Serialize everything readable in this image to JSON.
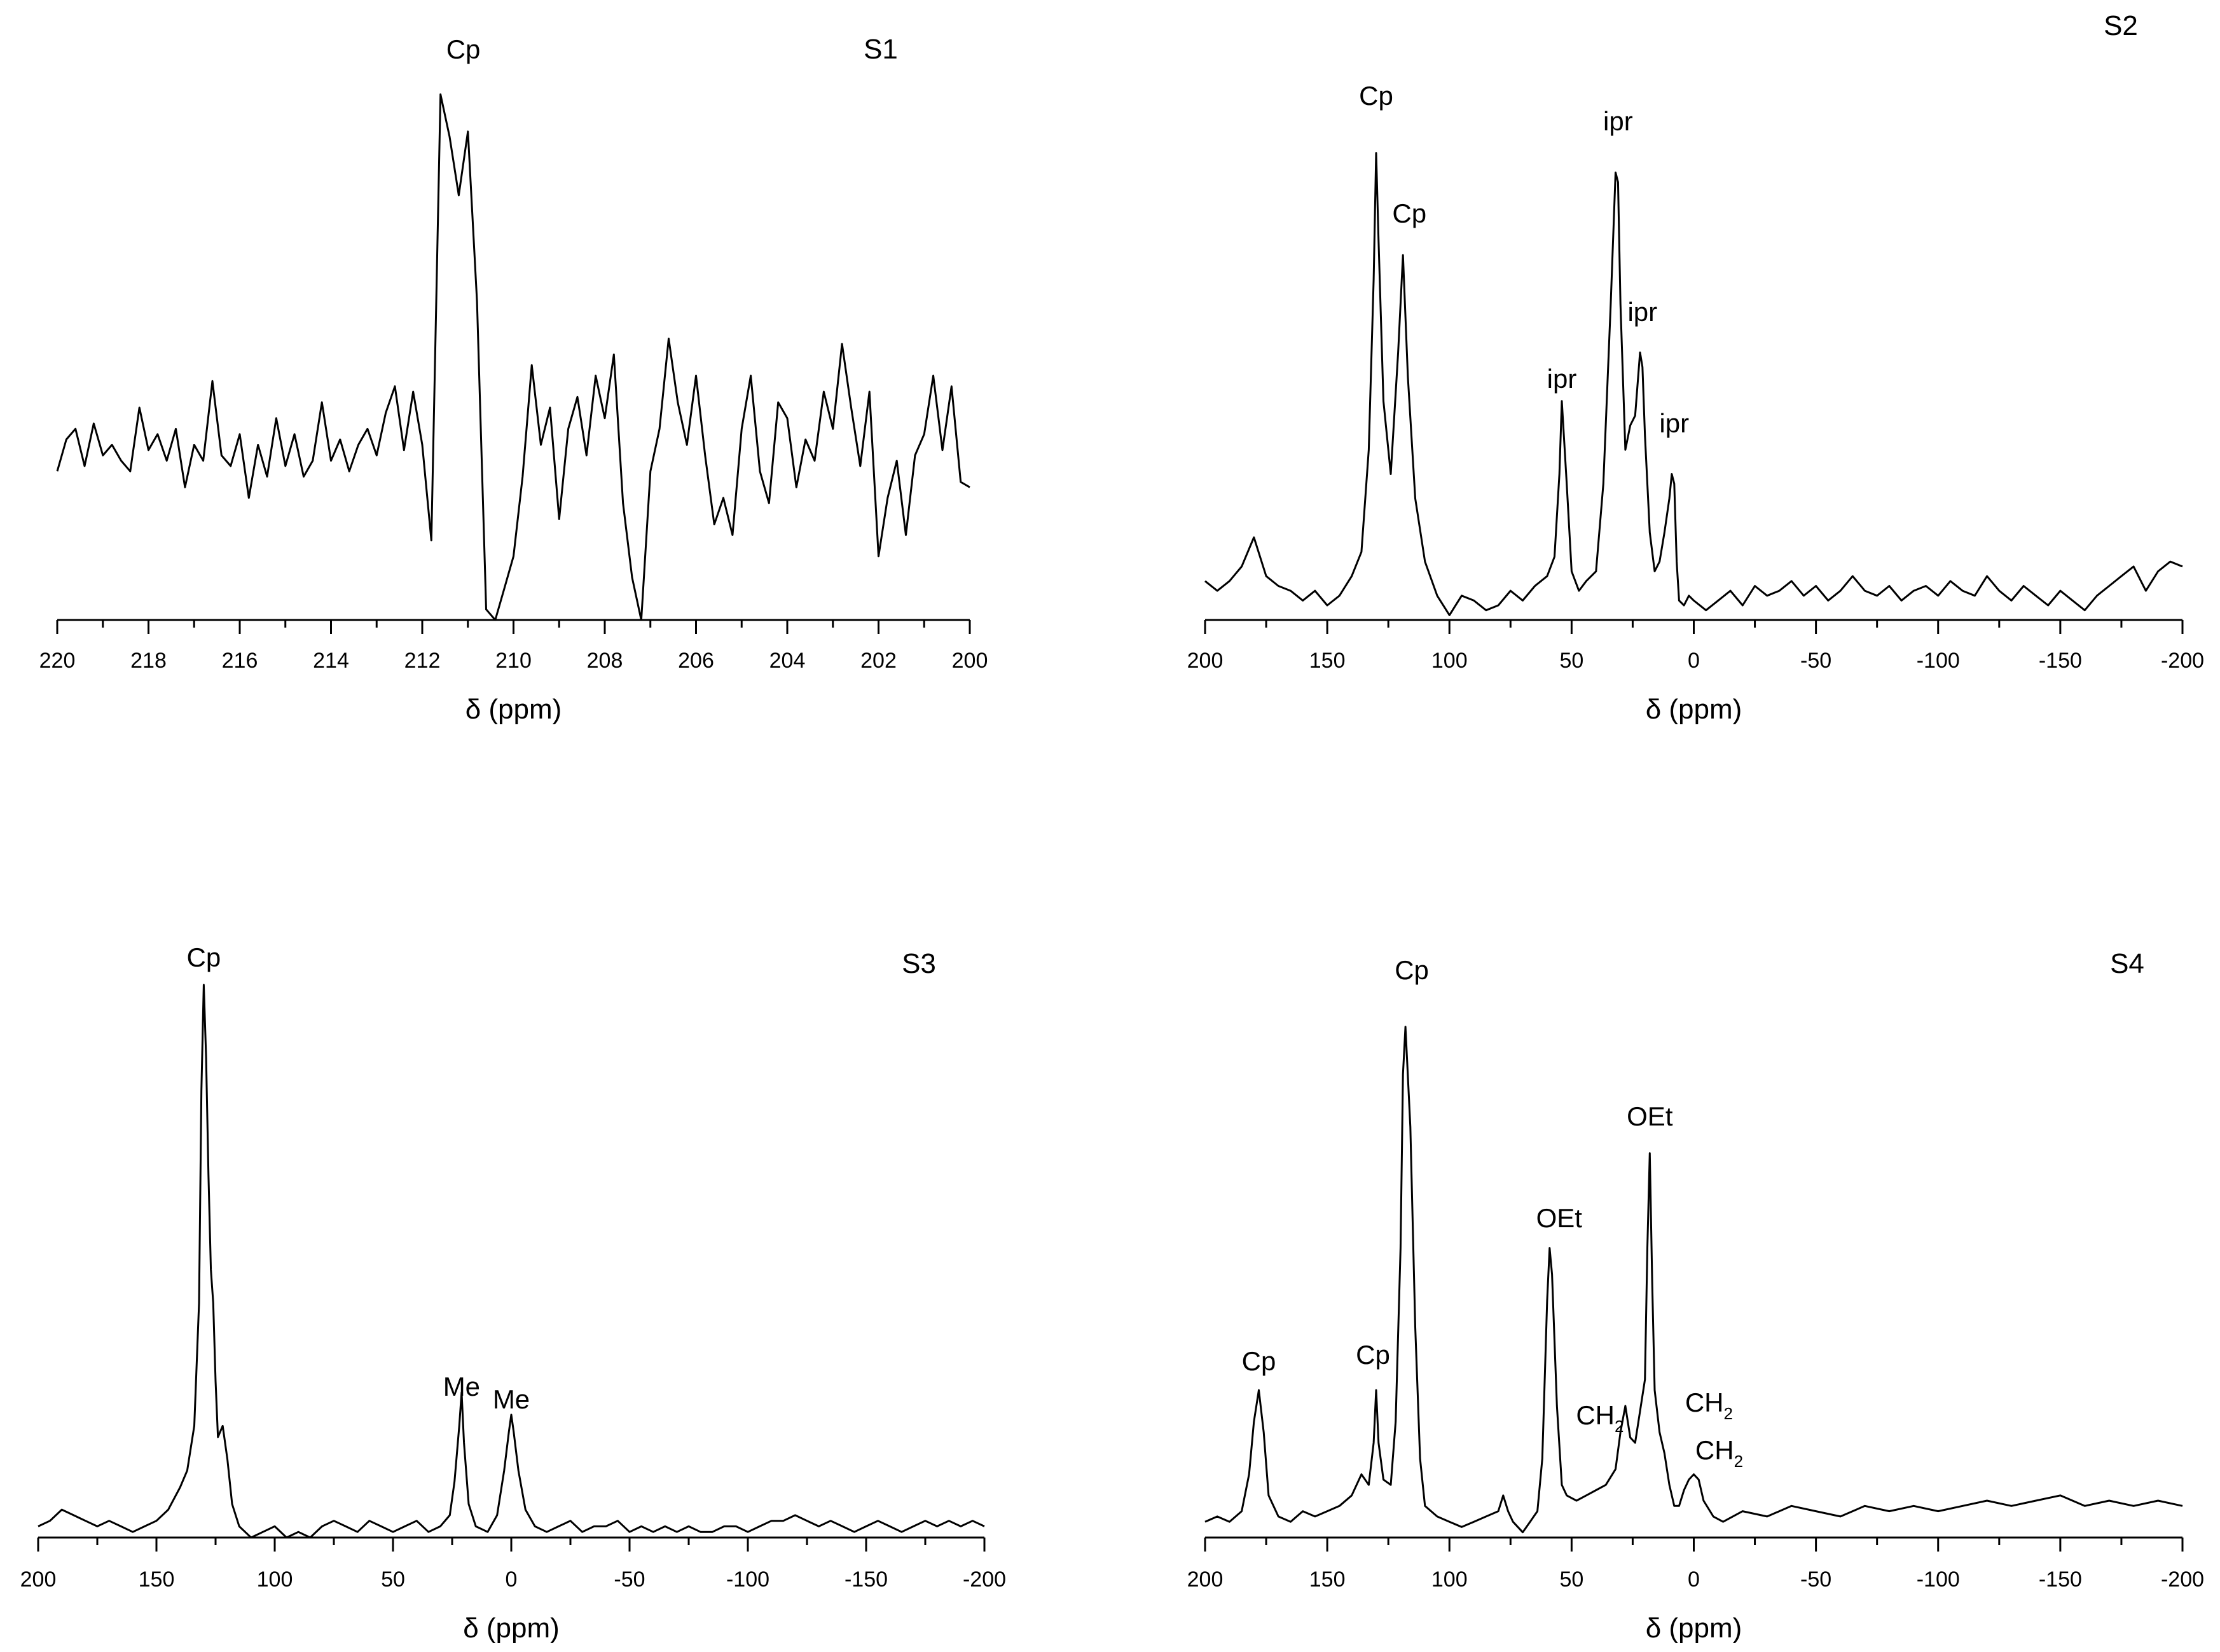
{
  "figure": {
    "panels": [
      "S1",
      "S2",
      "S3",
      "S4"
    ]
  },
  "chart_data": [
    {
      "type": "line",
      "panel_label": "S1",
      "xlabel": "δ (ppm)",
      "ylabel": "",
      "xlim": [
        220,
        200
      ],
      "x_reversed": true,
      "y_axis_shown": false,
      "grid": false,
      "xticks": [
        220,
        218,
        216,
        214,
        212,
        210,
        208,
        206,
        204,
        202,
        200
      ],
      "annotations": [
        {
          "text": "Cp",
          "x": 211.1
        }
      ],
      "series": [
        {
          "x": [
            220.0,
            219.8,
            219.6,
            219.4,
            219.2,
            219.0,
            218.8,
            218.6,
            218.4,
            218.2,
            218.0,
            217.8,
            217.6,
            217.4,
            217.2,
            217.0,
            216.8,
            216.6,
            216.4,
            216.2,
            216.0,
            215.8,
            215.6,
            215.4,
            215.2,
            215.0,
            214.8,
            214.6,
            214.4,
            214.2,
            214.0,
            213.8,
            213.6,
            213.4,
            213.2,
            213.0,
            212.8,
            212.6,
            212.4,
            212.2,
            212.0,
            211.8,
            211.6,
            211.4,
            211.2,
            211.0,
            210.8,
            210.6,
            210.4,
            210.2,
            210.0,
            209.8,
            209.6,
            209.4,
            209.2,
            209.0,
            208.8,
            208.6,
            208.4,
            208.2,
            208.0,
            207.8,
            207.6,
            207.4,
            207.2,
            207.0,
            206.8,
            206.6,
            206.4,
            206.2,
            206.0,
            205.8,
            205.6,
            205.4,
            205.2,
            205.0,
            204.8,
            204.6,
            204.4,
            204.2,
            204.0,
            203.8,
            203.6,
            203.4,
            203.2,
            203.0,
            202.8,
            202.6,
            202.4,
            202.2,
            202.0,
            201.8,
            201.6,
            201.4,
            201.2,
            201.0,
            200.8,
            200.6,
            200.4,
            200.2,
            200.0
          ],
          "values": [
            0.28,
            0.34,
            0.36,
            0.29,
            0.37,
            0.31,
            0.33,
            0.3,
            0.28,
            0.4,
            0.32,
            0.35,
            0.3,
            0.36,
            0.25,
            0.33,
            0.3,
            0.45,
            0.31,
            0.29,
            0.35,
            0.23,
            0.33,
            0.27,
            0.38,
            0.29,
            0.35,
            0.27,
            0.3,
            0.41,
            0.3,
            0.34,
            0.28,
            0.33,
            0.36,
            0.31,
            0.39,
            0.44,
            0.32,
            0.43,
            0.33,
            0.15,
            0.99,
            0.91,
            0.8,
            0.92,
            0.6,
            0.02,
            0.0,
            0.06,
            0.12,
            0.27,
            0.48,
            0.33,
            0.4,
            0.19,
            0.36,
            0.42,
            0.31,
            0.46,
            0.38,
            0.5,
            0.22,
            0.08,
            0.0,
            0.28,
            0.36,
            0.53,
            0.41,
            0.33,
            0.46,
            0.31,
            0.18,
            0.23,
            0.16,
            0.36,
            0.46,
            0.28,
            0.22,
            0.41,
            0.38,
            0.25,
            0.34,
            0.3,
            0.43,
            0.36,
            0.52,
            0.4,
            0.29,
            0.43,
            0.12,
            0.23,
            0.3,
            0.16,
            0.31,
            0.35,
            0.46,
            0.32,
            0.44,
            0.26,
            0.25
          ]
        }
      ]
    },
    {
      "type": "line",
      "panel_label": "S2",
      "xlabel": "δ (ppm)",
      "ylabel": "",
      "xlim": [
        200,
        -200
      ],
      "x_reversed": true,
      "y_axis_shown": false,
      "grid": false,
      "xticks": [
        200,
        150,
        100,
        50,
        0,
        -50,
        -100,
        -150,
        -200
      ],
      "annotations": [
        {
          "text": "Cp",
          "x": 130
        },
        {
          "text": "Cp",
          "x": 119
        },
        {
          "text": "ipr",
          "x": 54
        },
        {
          "text": "ipr",
          "x": 31
        },
        {
          "text": "ipr",
          "x": 21
        },
        {
          "text": "ipr",
          "x": 8
        }
      ],
      "series": [
        {
          "x": [
            200,
            195,
            190,
            185,
            180,
            175,
            170,
            165,
            160,
            155,
            150,
            145,
            140,
            136,
            133,
            131,
            130,
            129,
            127,
            124,
            121,
            119,
            117,
            114,
            110,
            105,
            100,
            95,
            90,
            85,
            80,
            75,
            70,
            65,
            60,
            57,
            55,
            54,
            52,
            50,
            47,
            44,
            40,
            37,
            34,
            32,
            31,
            30,
            28,
            26,
            24,
            22,
            21,
            20,
            18,
            16,
            14,
            12,
            10,
            9,
            8,
            7,
            6,
            4,
            2,
            0,
            -5,
            -10,
            -15,
            -20,
            -25,
            -30,
            -35,
            -40,
            -45,
            -50,
            -55,
            -60,
            -65,
            -70,
            -75,
            -80,
            -85,
            -90,
            -95,
            -100,
            -105,
            -110,
            -115,
            -120,
            -125,
            -130,
            -135,
            -140,
            -145,
            -150,
            -155,
            -160,
            -165,
            -170,
            -175,
            -180,
            -185,
            -190,
            -195,
            -200
          ],
          "values": [
            0.08,
            0.06,
            0.08,
            0.11,
            0.17,
            0.09,
            0.07,
            0.06,
            0.04,
            0.06,
            0.03,
            0.05,
            0.09,
            0.14,
            0.35,
            0.7,
            0.96,
            0.78,
            0.45,
            0.3,
            0.55,
            0.75,
            0.5,
            0.25,
            0.12,
            0.05,
            0.01,
            0.05,
            0.04,
            0.02,
            0.03,
            0.06,
            0.04,
            0.07,
            0.09,
            0.13,
            0.3,
            0.45,
            0.28,
            0.1,
            0.06,
            0.08,
            0.1,
            0.28,
            0.65,
            0.92,
            0.9,
            0.65,
            0.35,
            0.4,
            0.42,
            0.55,
            0.52,
            0.38,
            0.18,
            0.1,
            0.12,
            0.18,
            0.25,
            0.3,
            0.28,
            0.12,
            0.04,
            0.03,
            0.05,
            0.04,
            0.02,
            0.04,
            0.06,
            0.03,
            0.07,
            0.05,
            0.06,
            0.08,
            0.05,
            0.07,
            0.04,
            0.06,
            0.09,
            0.06,
            0.05,
            0.07,
            0.04,
            0.06,
            0.07,
            0.05,
            0.08,
            0.06,
            0.05,
            0.09,
            0.06,
            0.04,
            0.07,
            0.05,
            0.03,
            0.06,
            0.04,
            0.02,
            0.05,
            0.07,
            0.09,
            0.11,
            0.06,
            0.1,
            0.12,
            0.11
          ]
        }
      ]
    },
    {
      "type": "line",
      "panel_label": "S3",
      "xlabel": "δ (ppm)",
      "ylabel": "",
      "xlim": [
        200,
        -200
      ],
      "x_reversed": true,
      "y_axis_shown": false,
      "grid": false,
      "xticks": [
        200,
        150,
        100,
        50,
        0,
        -50,
        -100,
        -150,
        -200
      ],
      "annotations": [
        {
          "text": "Cp",
          "x": 130
        },
        {
          "text": "Me",
          "x": 21
        },
        {
          "text": "Me",
          "x": 0
        }
      ],
      "series": [
        {
          "x": [
            200,
            195,
            190,
            185,
            180,
            175,
            170,
            165,
            160,
            155,
            150,
            145,
            140,
            137,
            134,
            132,
            131,
            130,
            129,
            128,
            127,
            126,
            125,
            124,
            122,
            120,
            118,
            115,
            110,
            105,
            100,
            95,
            90,
            85,
            80,
            75,
            70,
            65,
            60,
            55,
            50,
            45,
            40,
            35,
            30,
            26,
            24,
            22,
            21,
            20,
            18,
            15,
            10,
            6,
            3,
            1,
            0,
            -1,
            -3,
            -6,
            -10,
            -15,
            -20,
            -25,
            -30,
            -35,
            -40,
            -45,
            -50,
            -55,
            -60,
            -65,
            -70,
            -75,
            -80,
            -85,
            -90,
            -95,
            -100,
            -105,
            -110,
            -115,
            -120,
            -125,
            -130,
            -135,
            -140,
            -145,
            -150,
            -155,
            -160,
            -165,
            -170,
            -175,
            -180,
            -185,
            -190,
            -195,
            -200
          ],
          "values": [
            0.02,
            0.03,
            0.05,
            0.04,
            0.03,
            0.02,
            0.03,
            0.02,
            0.01,
            0.02,
            0.03,
            0.05,
            0.09,
            0.12,
            0.2,
            0.42,
            0.8,
            0.99,
            0.86,
            0.65,
            0.48,
            0.42,
            0.28,
            0.18,
            0.2,
            0.14,
            0.06,
            0.02,
            0.0,
            0.01,
            0.02,
            0.0,
            0.01,
            0.0,
            0.02,
            0.03,
            0.02,
            0.01,
            0.03,
            0.02,
            0.01,
            0.02,
            0.03,
            0.01,
            0.02,
            0.04,
            0.1,
            0.2,
            0.26,
            0.17,
            0.06,
            0.02,
            0.01,
            0.04,
            0.12,
            0.19,
            0.22,
            0.19,
            0.12,
            0.05,
            0.02,
            0.01,
            0.02,
            0.03,
            0.01,
            0.02,
            0.02,
            0.03,
            0.01,
            0.02,
            0.01,
            0.02,
            0.01,
            0.02,
            0.01,
            0.01,
            0.02,
            0.02,
            0.01,
            0.02,
            0.03,
            0.03,
            0.04,
            0.03,
            0.02,
            0.03,
            0.02,
            0.01,
            0.02,
            0.03,
            0.02,
            0.01,
            0.02,
            0.03,
            0.02,
            0.03,
            0.02,
            0.03,
            0.02
          ]
        }
      ]
    },
    {
      "type": "line",
      "panel_label": "S4",
      "xlabel": "δ (ppm)",
      "ylabel": "",
      "xlim": [
        200,
        -200
      ],
      "x_reversed": true,
      "y_axis_shown": false,
      "grid": false,
      "xticks": [
        200,
        150,
        100,
        50,
        0,
        -50,
        -100,
        -150,
        -200
      ],
      "annotations": [
        {
          "text": "Cp",
          "x": 178
        },
        {
          "text": "Cp",
          "x": 130
        },
        {
          "text": "Cp",
          "x": 118
        },
        {
          "text": "OEt",
          "x": 59
        },
        {
          "text": "OEt",
          "x": 18
        },
        {
          "text": "CH2",
          "x": 28
        },
        {
          "text": "CH2",
          "x": 12
        },
        {
          "text": "CH2",
          "x": 0
        }
      ],
      "series": [
        {
          "x": [
            200,
            195,
            190,
            185,
            182,
            180,
            178,
            176,
            174,
            170,
            165,
            160,
            155,
            150,
            145,
            140,
            136,
            133,
            131,
            130,
            129,
            127,
            124,
            122,
            120,
            119,
            118,
            116,
            114,
            112,
            110,
            105,
            100,
            95,
            90,
            85,
            80,
            78,
            76,
            74,
            70,
            67,
            64,
            62,
            60,
            59,
            58,
            56,
            54,
            52,
            48,
            44,
            40,
            36,
            32,
            30,
            28,
            26,
            24,
            22,
            20,
            19,
            18,
            17,
            16,
            14,
            12,
            10,
            8,
            6,
            4,
            2,
            0,
            -2,
            -4,
            -8,
            -12,
            -20,
            -30,
            -40,
            -50,
            -60,
            -70,
            -80,
            -90,
            -100,
            -110,
            -120,
            -130,
            -140,
            -150,
            -160,
            -170,
            -180,
            -190,
            -200
          ],
          "values": [
            0.03,
            0.04,
            0.03,
            0.05,
            0.12,
            0.22,
            0.28,
            0.2,
            0.08,
            0.04,
            0.03,
            0.05,
            0.04,
            0.05,
            0.06,
            0.08,
            0.12,
            0.1,
            0.18,
            0.28,
            0.18,
            0.11,
            0.1,
            0.22,
            0.55,
            0.88,
            0.97,
            0.78,
            0.4,
            0.15,
            0.06,
            0.04,
            0.03,
            0.02,
            0.03,
            0.04,
            0.05,
            0.08,
            0.05,
            0.03,
            0.01,
            0.03,
            0.05,
            0.15,
            0.45,
            0.55,
            0.5,
            0.25,
            0.1,
            0.08,
            0.07,
            0.08,
            0.09,
            0.1,
            0.13,
            0.2,
            0.25,
            0.19,
            0.18,
            0.24,
            0.3,
            0.55,
            0.73,
            0.48,
            0.28,
            0.2,
            0.16,
            0.1,
            0.06,
            0.06,
            0.09,
            0.11,
            0.12,
            0.11,
            0.07,
            0.04,
            0.03,
            0.05,
            0.04,
            0.06,
            0.05,
            0.04,
            0.06,
            0.05,
            0.06,
            0.05,
            0.06,
            0.07,
            0.06,
            0.07,
            0.08,
            0.06,
            0.07,
            0.06,
            0.07,
            0.06
          ]
        }
      ]
    }
  ]
}
